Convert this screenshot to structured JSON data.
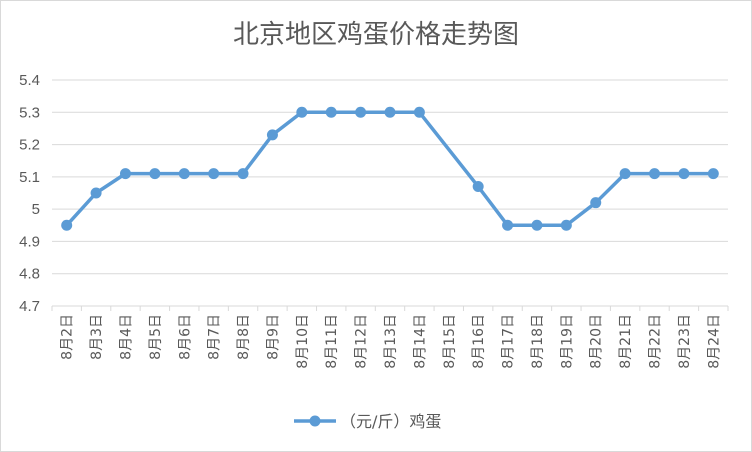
{
  "chart_data": {
    "type": "line",
    "title": "北京地区鸡蛋价格走势图",
    "categories": [
      "8月2日",
      "8月3日",
      "8月4日",
      "8月5日",
      "8月6日",
      "8月7日",
      "8月8日",
      "8月9日",
      "8月10日",
      "8月11日",
      "8月12日",
      "8月13日",
      "8月14日",
      "8月15日",
      "8月16日",
      "8月17日",
      "8月18日",
      "8月19日",
      "8月20日",
      "8月21日",
      "8月22日",
      "8月23日",
      "8月24日"
    ],
    "series": [
      {
        "name": "（元/斤）鸡蛋",
        "values": [
          4.95,
          5.05,
          5.11,
          5.11,
          5.11,
          5.11,
          5.11,
          5.23,
          5.3,
          5.3,
          5.3,
          5.3,
          5.3,
          null,
          5.07,
          4.95,
          4.95,
          4.95,
          5.02,
          5.11,
          5.11,
          5.11,
          5.11
        ]
      }
    ],
    "ylim": [
      4.7,
      5.4
    ],
    "yticks": [
      "4.7",
      "4.8",
      "4.9",
      "5",
      "5.1",
      "5.2",
      "5.3",
      "5.4"
    ],
    "grid": true,
    "legend": "bottom",
    "colors": {
      "series": "#5b9bd5",
      "grid": "#d9d9d9",
      "text": "#595959"
    }
  }
}
